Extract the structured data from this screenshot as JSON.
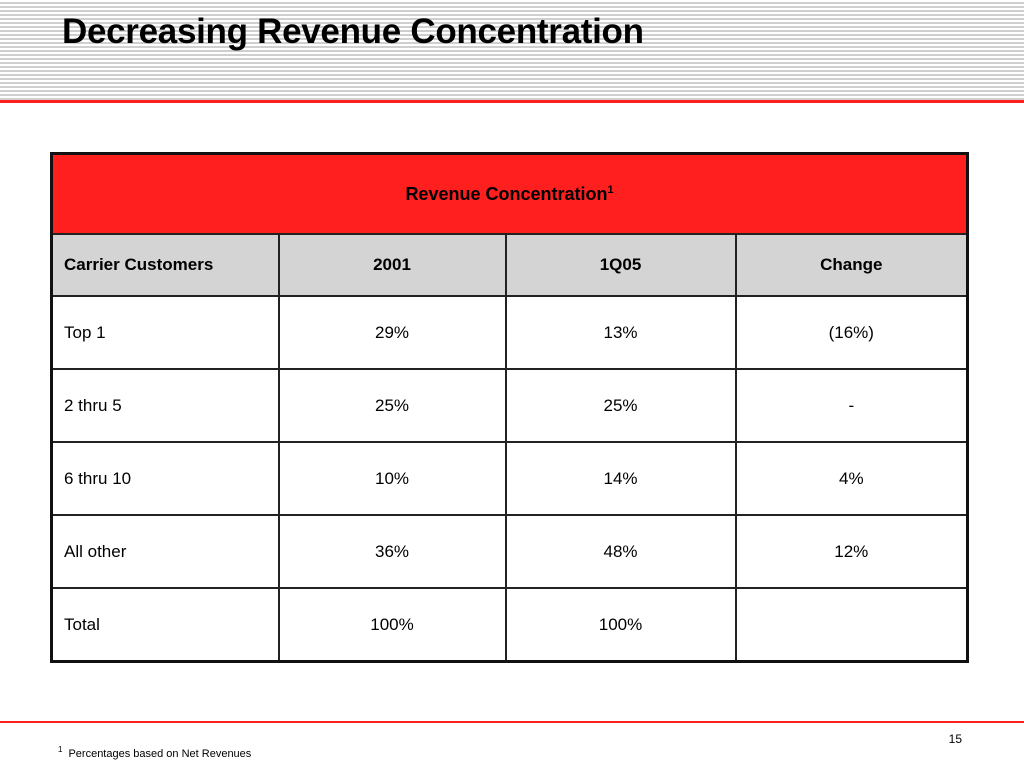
{
  "slide": {
    "title": "Decreasing Revenue Concentration",
    "page_number": "15",
    "footnote": {
      "marker": "1",
      "text": "Percentages based on Net Revenues"
    }
  },
  "table": {
    "caption": "Revenue Concentration",
    "caption_marker": "1",
    "columns": [
      "Carrier Customers",
      "2001",
      "1Q05",
      "Change"
    ],
    "rows": [
      [
        "Top 1",
        "29%",
        "13%",
        "(16%)"
      ],
      [
        "2 thru 5",
        "25%",
        "25%",
        "-"
      ],
      [
        "6 thru 10",
        "10%",
        "14%",
        "4%"
      ],
      [
        "All other",
        "36%",
        "48%",
        "12%"
      ],
      [
        "Total",
        "100%",
        "100%",
        ""
      ]
    ]
  },
  "colors": {
    "accent_red": "#ff1f1f",
    "header_gray": "#d4d4d4",
    "stripe_gray": "#cfcfcf"
  }
}
